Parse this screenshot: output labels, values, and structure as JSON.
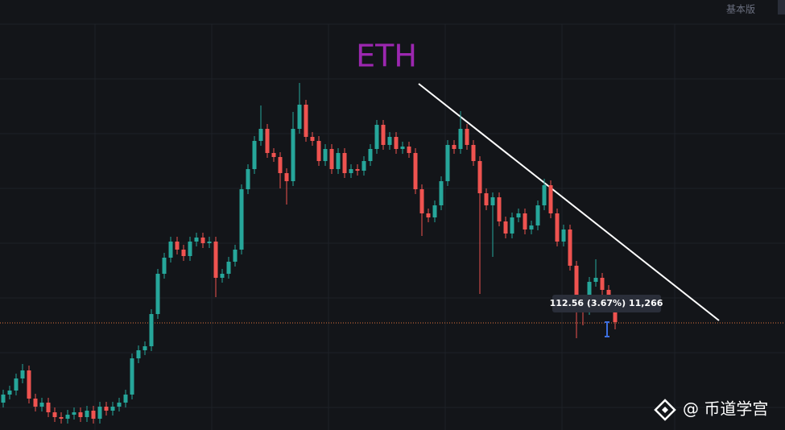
{
  "toolbar": {
    "mode": "基本版"
  },
  "watermark": "@ 币道学宫",
  "chart_data": {
    "type": "candlestick",
    "title": "ETH",
    "price_label": "112.56 (3.67%) 11,266",
    "ylim": [
      0,
      534
    ],
    "up_color": "#26a69a",
    "down_color": "#ef5350",
    "open": [
      34,
      44,
      49,
      64,
      74,
      39,
      29,
      34,
      22,
      16,
      14,
      19,
      22,
      16,
      24,
      14,
      29,
      24,
      29,
      34,
      44,
      89,
      99,
      104,
      144,
      194,
      214,
      234,
      224,
      216,
      234,
      239,
      232,
      234,
      189,
      194,
      209,
      224,
      299,
      324,
      359,
      374,
      344,
      339,
      319,
      309,
      374,
      404,
      364,
      359,
      334,
      349,
      324,
      344,
      319,
      324,
      322,
      334,
      349,
      379,
      354,
      364,
      349,
      352,
      344,
      299,
      269,
      264,
      279,
      309,
      354,
      349,
      374,
      354,
      334,
      294,
      279,
      289,
      259,
      244,
      264,
      269,
      249,
      254,
      279,
      304,
      269,
      234,
      249,
      204,
      159,
      149,
      184,
      189,
      174,
      159
    ],
    "high": [
      50,
      55,
      70,
      82,
      80,
      45,
      40,
      40,
      28,
      22,
      25,
      28,
      28,
      30,
      30,
      35,
      35,
      35,
      40,
      50,
      95,
      105,
      110,
      150,
      200,
      220,
      240,
      240,
      230,
      240,
      245,
      245,
      240,
      240,
      200,
      215,
      230,
      305,
      330,
      365,
      403,
      380,
      350,
      345,
      325,
      395,
      431,
      410,
      370,
      365,
      355,
      355,
      350,
      350,
      330,
      330,
      340,
      355,
      385,
      385,
      370,
      370,
      358,
      358,
      350,
      305,
      275,
      285,
      315,
      360,
      360,
      396,
      380,
      360,
      340,
      300,
      295,
      295,
      265,
      270,
      275,
      275,
      260,
      285,
      312,
      310,
      275,
      255,
      255,
      210,
      165,
      190,
      212,
      195,
      180,
      165
    ],
    "low": [
      28,
      38,
      43,
      58,
      33,
      23,
      23,
      16,
      10,
      8,
      8,
      13,
      10,
      10,
      8,
      8,
      18,
      18,
      23,
      28,
      38,
      83,
      93,
      98,
      138,
      188,
      208,
      218,
      210,
      210,
      228,
      226,
      226,
      165,
      183,
      188,
      203,
      218,
      293,
      318,
      353,
      338,
      333,
      300,
      280,
      303,
      368,
      358,
      353,
      328,
      328,
      318,
      318,
      313,
      313,
      316,
      316,
      328,
      343,
      348,
      348,
      343,
      343,
      338,
      293,
      241,
      258,
      258,
      273,
      303,
      343,
      343,
      348,
      328,
      169,
      273,
      215,
      253,
      238,
      238,
      258,
      243,
      243,
      248,
      273,
      263,
      228,
      228,
      198,
      114,
      130,
      143,
      178,
      168,
      153,
      125
    ],
    "close": [
      44,
      49,
      64,
      74,
      39,
      29,
      34,
      22,
      16,
      14,
      19,
      22,
      16,
      24,
      14,
      29,
      24,
      29,
      34,
      44,
      89,
      99,
      104,
      144,
      194,
      214,
      234,
      224,
      216,
      234,
      239,
      232,
      234,
      189,
      194,
      209,
      224,
      299,
      324,
      359,
      374,
      344,
      339,
      319,
      309,
      374,
      404,
      364,
      359,
      334,
      349,
      324,
      344,
      319,
      324,
      322,
      334,
      349,
      379,
      354,
      364,
      349,
      352,
      344,
      299,
      269,
      264,
      279,
      309,
      354,
      349,
      374,
      354,
      334,
      294,
      279,
      289,
      259,
      244,
      264,
      269,
      249,
      254,
      279,
      304,
      269,
      234,
      249,
      204,
      159,
      149,
      184,
      189,
      174,
      159,
      134
    ]
  }
}
